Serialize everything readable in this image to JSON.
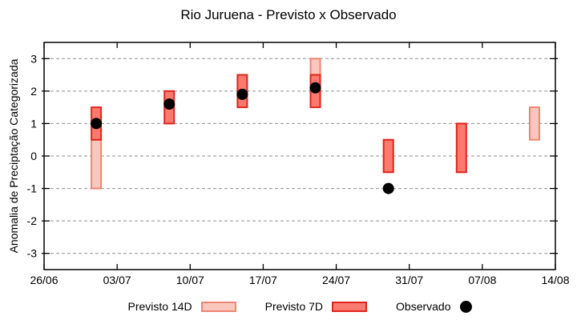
{
  "chart_data": {
    "type": "bar",
    "title": "Rio Juruena - Previsto x Observado",
    "xlabel": "",
    "ylabel": "Anomalia de Preciptação Categorizada",
    "ylim": [
      -3.5,
      3.5
    ],
    "yticks": [
      -3,
      -2,
      -1,
      0,
      1,
      2,
      3
    ],
    "x_axis": {
      "span_days": 49,
      "tick_interval_days": 7,
      "tick_labels": [
        "26/06",
        "03/07",
        "10/07",
        "17/07",
        "24/07",
        "31/07",
        "07/08",
        "14/08"
      ]
    },
    "grid": {
      "horizontal": true,
      "vertical": false,
      "style": "dashed",
      "color": "#909090"
    },
    "axis_color": "#000000",
    "series": [
      {
        "name": "Previsto 14D",
        "type": "range-bar",
        "fill": "#f9c7be",
        "stroke": "#ef8473",
        "data": [
          {
            "date": "01/07",
            "x_day": 5,
            "low": -1.0,
            "high": 0.5
          },
          {
            "date": "22/07",
            "x_day": 26,
            "low": 2.5,
            "high": 3.0
          },
          {
            "date": "12/08",
            "x_day": 47,
            "low": 0.5,
            "high": 1.5
          }
        ]
      },
      {
        "name": "Previsto 7D",
        "type": "range-bar",
        "fill": "#fa7a6e",
        "stroke": "#e1241b",
        "data": [
          {
            "date": "01/07",
            "x_day": 5,
            "low": 0.5,
            "high": 1.5
          },
          {
            "date": "08/07",
            "x_day": 12,
            "low": 1.0,
            "high": 2.0
          },
          {
            "date": "15/07",
            "x_day": 19,
            "low": 1.5,
            "high": 2.5
          },
          {
            "date": "22/07",
            "x_day": 26,
            "low": 1.5,
            "high": 2.5
          },
          {
            "date": "29/07",
            "x_day": 33,
            "low": -0.5,
            "high": 0.5
          },
          {
            "date": "05/08",
            "x_day": 40,
            "low": -0.5,
            "high": 1.0
          }
        ]
      },
      {
        "name": "Observado",
        "type": "scatter",
        "color": "#000000",
        "data": [
          {
            "date": "01/07",
            "x_day": 5,
            "y": 1.0
          },
          {
            "date": "08/07",
            "x_day": 12,
            "y": 1.6
          },
          {
            "date": "15/07",
            "x_day": 19,
            "y": 1.9
          },
          {
            "date": "22/07",
            "x_day": 26,
            "y": 2.1
          },
          {
            "date": "29/07",
            "x_day": 33,
            "y": -1.0
          }
        ]
      }
    ],
    "legend": {
      "position": "bottom-center",
      "items": [
        "Previsto 14D",
        "Previsto 7D",
        "Observado"
      ]
    }
  }
}
